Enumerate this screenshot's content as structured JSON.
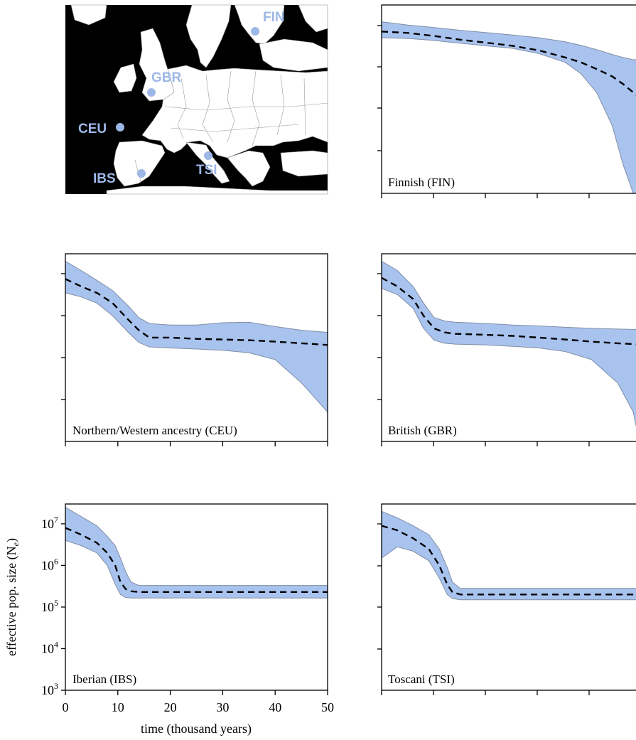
{
  "colors": {
    "band": "#a9c3ef",
    "band_edge": "#7f8ea6",
    "line": "#000000",
    "map_land": "#ffffff",
    "map_sea": "#000000",
    "map_marker": "#9db7e6"
  },
  "map": {
    "labels": [
      {
        "id": "FIN",
        "text": "FIN"
      },
      {
        "id": "GBR",
        "text": "GBR"
      },
      {
        "id": "CEU",
        "text": "CEU"
      },
      {
        "id": "TSI",
        "text": "TSI"
      },
      {
        "id": "IBS",
        "text": "IBS"
      }
    ]
  },
  "shared_axes": {
    "ylabel": "effective pop. size (N",
    "ylabel_sub": "e",
    "ylabel_close": ")",
    "xlabel": "time (thousand years)",
    "y_ticks": [
      {
        "base": "10",
        "exp": "3",
        "value": 1000
      },
      {
        "base": "10",
        "exp": "4",
        "value": 10000
      },
      {
        "base": "10",
        "exp": "5",
        "value": 100000
      },
      {
        "base": "10",
        "exp": "6",
        "value": 1000000
      },
      {
        "base": "10",
        "exp": "7",
        "value": 10000000
      }
    ],
    "x_ticks": [
      "0",
      "10",
      "20",
      "30",
      "40",
      "50"
    ]
  },
  "chart_data": [
    {
      "type": "area",
      "label": "Finnish (FIN)",
      "log_y": true,
      "xlim": [
        0,
        50
      ],
      "ylim": [
        1000,
        30000000
      ],
      "x": [
        0,
        5,
        10,
        15,
        20,
        25,
        30,
        35,
        38,
        41,
        44,
        46,
        48,
        49,
        50
      ],
      "y_mid": [
        7000000,
        6500000,
        5500000,
        4500000,
        3800000,
        3200000,
        2500000,
        1700000,
        1300000,
        900000,
        600000,
        400000,
        250000,
        200000,
        170000
      ],
      "y_low": [
        5000000,
        4800000,
        4300000,
        3700000,
        3200000,
        2800000,
        2100000,
        1300000,
        700000,
        250000,
        40000,
        5000,
        1000,
        1000,
        1000
      ],
      "y_high": [
        12000000,
        10000000,
        8700000,
        7500000,
        6600000,
        5800000,
        5000000,
        4000000,
        3300000,
        2600000,
        2000000,
        1700000,
        1500000,
        1500000,
        1500000
      ]
    },
    {
      "type": "area",
      "label": "Northern/Western ancestry (CEU)",
      "log_y": true,
      "xlim": [
        0,
        50
      ],
      "ylim": [
        1000,
        30000000
      ],
      "x": [
        0,
        3,
        6,
        9,
        12,
        14,
        16,
        20,
        25,
        30,
        35,
        40,
        45,
        50
      ],
      "y_mid": [
        7500000,
        5000000,
        3500000,
        2000000,
        800000,
        450000,
        300000,
        300000,
        280000,
        270000,
        260000,
        240000,
        220000,
        200000
      ],
      "y_low": [
        3500000,
        2800000,
        2000000,
        1000000,
        400000,
        230000,
        180000,
        170000,
        160000,
        150000,
        130000,
        90000,
        25000,
        5000
      ],
      "y_high": [
        20000000,
        12000000,
        7000000,
        4000000,
        1700000,
        900000,
        650000,
        600000,
        600000,
        680000,
        700000,
        550000,
        450000,
        400000
      ]
    },
    {
      "type": "area",
      "label": "British (GBR)",
      "log_y": true,
      "xlim": [
        0,
        50
      ],
      "ylim": [
        1000,
        30000000
      ],
      "x": [
        0,
        3,
        6,
        8,
        10,
        12,
        14,
        20,
        25,
        30,
        35,
        40,
        45,
        48,
        50
      ],
      "y_mid": [
        8000000,
        5000000,
        2500000,
        1000000,
        500000,
        400000,
        370000,
        350000,
        330000,
        300000,
        270000,
        240000,
        220000,
        210000,
        200000
      ],
      "y_low": [
        4500000,
        3200000,
        1500000,
        500000,
        260000,
        220000,
        210000,
        200000,
        185000,
        170000,
        140000,
        90000,
        25000,
        5000,
        300
      ],
      "y_high": [
        20000000,
        12000000,
        5000000,
        2000000,
        900000,
        750000,
        700000,
        650000,
        600000,
        570000,
        530000,
        500000,
        480000,
        470000,
        460000
      ]
    },
    {
      "type": "area",
      "label": "Iberian (IBS)",
      "log_y": true,
      "xlim": [
        0,
        50
      ],
      "ylim": [
        1000,
        30000000
      ],
      "x": [
        0,
        3,
        6,
        8,
        9.5,
        10.5,
        11.5,
        12.5,
        14,
        20,
        30,
        40,
        50
      ],
      "y_mid": [
        8000000,
        5500000,
        3500000,
        2000000,
        1000000,
        400000,
        270000,
        240000,
        230000,
        230000,
        230000,
        230000,
        230000
      ],
      "y_low": [
        4000000,
        3000000,
        2000000,
        1000000,
        350000,
        200000,
        170000,
        165000,
        165000,
        165000,
        165000,
        165000,
        165000
      ],
      "y_high": [
        25000000,
        15000000,
        9000000,
        5000000,
        3000000,
        1500000,
        700000,
        400000,
        330000,
        330000,
        330000,
        330000,
        330000
      ]
    },
    {
      "type": "area",
      "label": "Toscani (TSI)",
      "log_y": true,
      "xlim": [
        0,
        50
      ],
      "ylim": [
        1000,
        30000000
      ],
      "x": [
        0,
        3,
        6,
        9,
        11,
        12.5,
        13.5,
        15,
        20,
        30,
        40,
        50
      ],
      "y_mid": [
        9000000,
        7000000,
        4500000,
        2500000,
        1000000,
        350000,
        230000,
        200000,
        200000,
        200000,
        200000,
        200000
      ],
      "y_low": [
        1500000,
        2800000,
        2200000,
        1300000,
        500000,
        200000,
        160000,
        150000,
        150000,
        150000,
        150000,
        150000
      ],
      "y_high": [
        20000000,
        14000000,
        9000000,
        5500000,
        2500000,
        900000,
        400000,
        280000,
        280000,
        280000,
        280000,
        280000
      ]
    }
  ]
}
